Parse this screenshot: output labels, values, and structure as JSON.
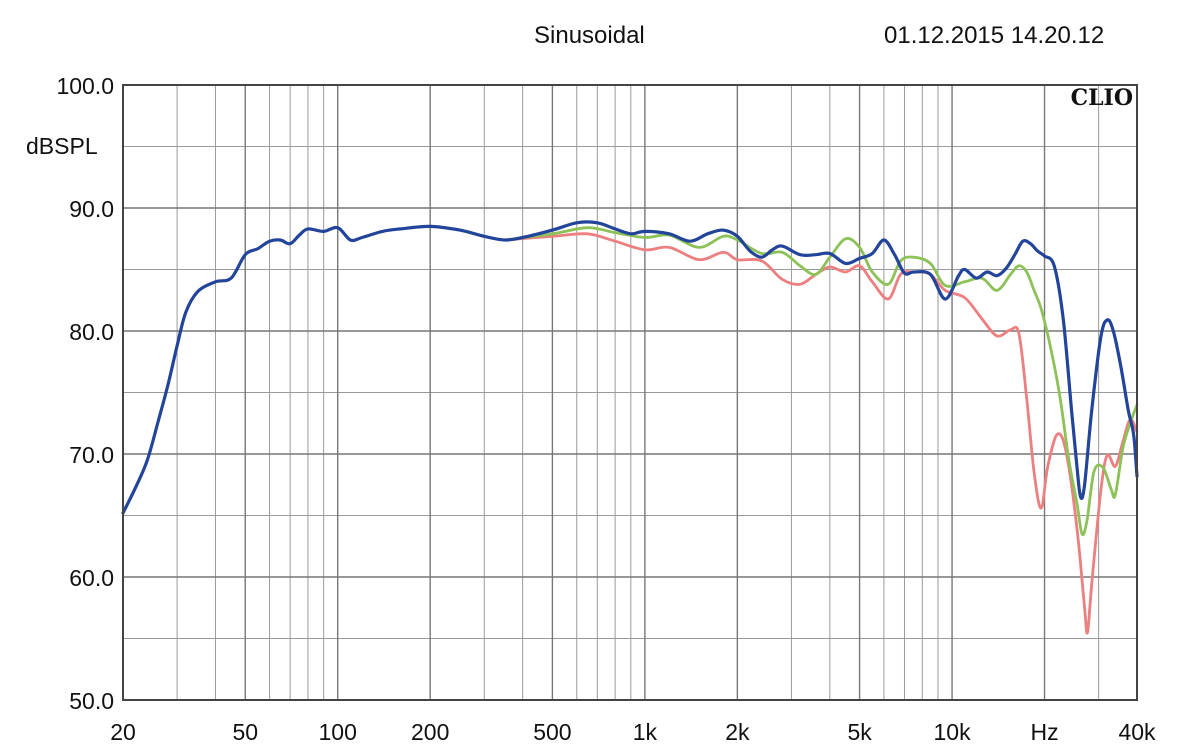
{
  "header": {
    "mode": "Sinusoidal",
    "timestamp": "01.12.2015 14.20.12"
  },
  "chart_data": {
    "type": "line",
    "title": "Sinusoidal",
    "brand": "CLIO",
    "ylabel": "dBSPL",
    "xscale": "log",
    "xlim": [
      20,
      40000
    ],
    "ylim": [
      50,
      100
    ],
    "grid": true,
    "x_tick_labels": [
      {
        "x": 20,
        "label": "20"
      },
      {
        "x": 50,
        "label": "50"
      },
      {
        "x": 100,
        "label": "100"
      },
      {
        "x": 200,
        "label": "200"
      },
      {
        "x": 500,
        "label": "500"
      },
      {
        "x": 1000,
        "label": "1k"
      },
      {
        "x": 2000,
        "label": "2k"
      },
      {
        "x": 5000,
        "label": "5k"
      },
      {
        "x": 10000,
        "label": "10k"
      },
      {
        "x": 20000,
        "label": "Hz"
      },
      {
        "x": 40000,
        "label": "40k"
      }
    ],
    "y_tick_labels": [
      {
        "y": 100,
        "label": "100.0"
      },
      {
        "y": 90,
        "label": "90.0"
      },
      {
        "y": 80,
        "label": "80.0"
      },
      {
        "y": 70,
        "label": "70.0"
      },
      {
        "y": 60,
        "label": "60.0"
      },
      {
        "y": 50,
        "label": "50.0"
      }
    ],
    "series": [
      {
        "color": "#ec7f7f",
        "points": [
          [
            350,
            87.4
          ],
          [
            500,
            87.7
          ],
          [
            650,
            87.9
          ],
          [
            800,
            87.3
          ],
          [
            1000,
            86.6
          ],
          [
            1200,
            86.8
          ],
          [
            1500,
            85.8
          ],
          [
            1800,
            86.4
          ],
          [
            2000,
            85.8
          ],
          [
            2400,
            85.7
          ],
          [
            2800,
            84.2
          ],
          [
            3200,
            83.8
          ],
          [
            3600,
            84.6
          ],
          [
            4000,
            85.2
          ],
          [
            4500,
            84.8
          ],
          [
            5000,
            85.3
          ],
          [
            5500,
            84.0
          ],
          [
            6200,
            82.6
          ],
          [
            6800,
            84.6
          ],
          [
            7500,
            84.8
          ],
          [
            8500,
            84.6
          ],
          [
            9500,
            83.3
          ],
          [
            11000,
            82.7
          ],
          [
            12500,
            81.0
          ],
          [
            14000,
            79.6
          ],
          [
            15500,
            80.1
          ],
          [
            16500,
            79.8
          ],
          [
            17500,
            74.5
          ],
          [
            18500,
            68.5
          ],
          [
            19500,
            65.6
          ],
          [
            20500,
            69.0
          ],
          [
            22000,
            71.6
          ],
          [
            23500,
            70.2
          ],
          [
            25500,
            64.0
          ],
          [
            27000,
            57.5
          ],
          [
            27600,
            55.5
          ],
          [
            28500,
            59.5
          ],
          [
            30500,
            67.0
          ],
          [
            32000,
            69.9
          ],
          [
            34000,
            69.0
          ],
          [
            36000,
            71.0
          ],
          [
            38000,
            72.8
          ],
          [
            40000,
            71.8
          ]
        ]
      },
      {
        "color": "#8cc257",
        "points": [
          [
            350,
            87.4
          ],
          [
            500,
            87.9
          ],
          [
            650,
            88.4
          ],
          [
            800,
            88.0
          ],
          [
            1000,
            87.6
          ],
          [
            1200,
            87.8
          ],
          [
            1500,
            86.8
          ],
          [
            1800,
            87.7
          ],
          [
            2000,
            87.4
          ],
          [
            2400,
            86.3
          ],
          [
            2800,
            86.4
          ],
          [
            3200,
            85.3
          ],
          [
            3600,
            84.6
          ],
          [
            4000,
            86.0
          ],
          [
            4500,
            87.5
          ],
          [
            5000,
            86.8
          ],
          [
            5500,
            84.8
          ],
          [
            6200,
            83.8
          ],
          [
            6800,
            85.7
          ],
          [
            7500,
            86.0
          ],
          [
            8500,
            85.5
          ],
          [
            9500,
            83.7
          ],
          [
            11000,
            84.0
          ],
          [
            12500,
            84.3
          ],
          [
            14000,
            83.3
          ],
          [
            15500,
            84.6
          ],
          [
            16500,
            85.3
          ],
          [
            17500,
            84.8
          ],
          [
            18500,
            83.3
          ],
          [
            19500,
            81.8
          ],
          [
            21000,
            78.5
          ],
          [
            22500,
            74.5
          ],
          [
            24000,
            69.5
          ],
          [
            25500,
            66.0
          ],
          [
            26500,
            63.5
          ],
          [
            27500,
            64.6
          ],
          [
            29000,
            68.6
          ],
          [
            31000,
            68.9
          ],
          [
            33000,
            67.1
          ],
          [
            34000,
            66.7
          ],
          [
            36000,
            70.5
          ],
          [
            38000,
            72.5
          ],
          [
            40000,
            74.0
          ]
        ]
      },
      {
        "color": "#22449a",
        "points": [
          [
            20,
            65.2
          ],
          [
            22,
            67.3
          ],
          [
            24,
            69.5
          ],
          [
            26,
            72.6
          ],
          [
            28,
            75.6
          ],
          [
            30,
            78.8
          ],
          [
            32,
            81.5
          ],
          [
            35,
            83.2
          ],
          [
            40,
            84.0
          ],
          [
            45,
            84.3
          ],
          [
            50,
            86.2
          ],
          [
            55,
            86.7
          ],
          [
            60,
            87.3
          ],
          [
            65,
            87.4
          ],
          [
            70,
            87.1
          ],
          [
            75,
            87.8
          ],
          [
            80,
            88.3
          ],
          [
            90,
            88.1
          ],
          [
            100,
            88.4
          ],
          [
            110,
            87.4
          ],
          [
            120,
            87.6
          ],
          [
            140,
            88.1
          ],
          [
            160,
            88.3
          ],
          [
            200,
            88.5
          ],
          [
            250,
            88.2
          ],
          [
            300,
            87.7
          ],
          [
            350,
            87.4
          ],
          [
            400,
            87.6
          ],
          [
            500,
            88.2
          ],
          [
            600,
            88.8
          ],
          [
            700,
            88.8
          ],
          [
            800,
            88.3
          ],
          [
            900,
            87.9
          ],
          [
            1000,
            88.1
          ],
          [
            1200,
            87.9
          ],
          [
            1400,
            87.3
          ],
          [
            1600,
            87.9
          ],
          [
            1800,
            88.2
          ],
          [
            2000,
            87.7
          ],
          [
            2200,
            86.5
          ],
          [
            2400,
            86.0
          ],
          [
            2600,
            86.6
          ],
          [
            2800,
            86.9
          ],
          [
            3200,
            86.2
          ],
          [
            3600,
            86.2
          ],
          [
            4000,
            86.3
          ],
          [
            4500,
            85.5
          ],
          [
            5000,
            85.9
          ],
          [
            5500,
            86.3
          ],
          [
            6000,
            87.4
          ],
          [
            6500,
            86.2
          ],
          [
            7000,
            84.7
          ],
          [
            7500,
            84.8
          ],
          [
            8500,
            84.6
          ],
          [
            9500,
            82.6
          ],
          [
            10500,
            84.5
          ],
          [
            11000,
            85.0
          ],
          [
            12000,
            84.3
          ],
          [
            13000,
            84.8
          ],
          [
            14000,
            84.5
          ],
          [
            15000,
            85.1
          ],
          [
            16000,
            86.2
          ],
          [
            17000,
            87.3
          ],
          [
            18000,
            87.1
          ],
          [
            19000,
            86.5
          ],
          [
            20000,
            86.1
          ],
          [
            21500,
            85.3
          ],
          [
            23000,
            81.0
          ],
          [
            24500,
            73.5
          ],
          [
            25500,
            69.0
          ],
          [
            26200,
            66.5
          ],
          [
            27000,
            67.5
          ],
          [
            28500,
            73.6
          ],
          [
            30500,
            79.5
          ],
          [
            32000,
            80.9
          ],
          [
            33500,
            80.0
          ],
          [
            35500,
            77.0
          ],
          [
            37500,
            73.5
          ],
          [
            39000,
            71.6
          ],
          [
            40000,
            68.2
          ]
        ]
      }
    ]
  }
}
